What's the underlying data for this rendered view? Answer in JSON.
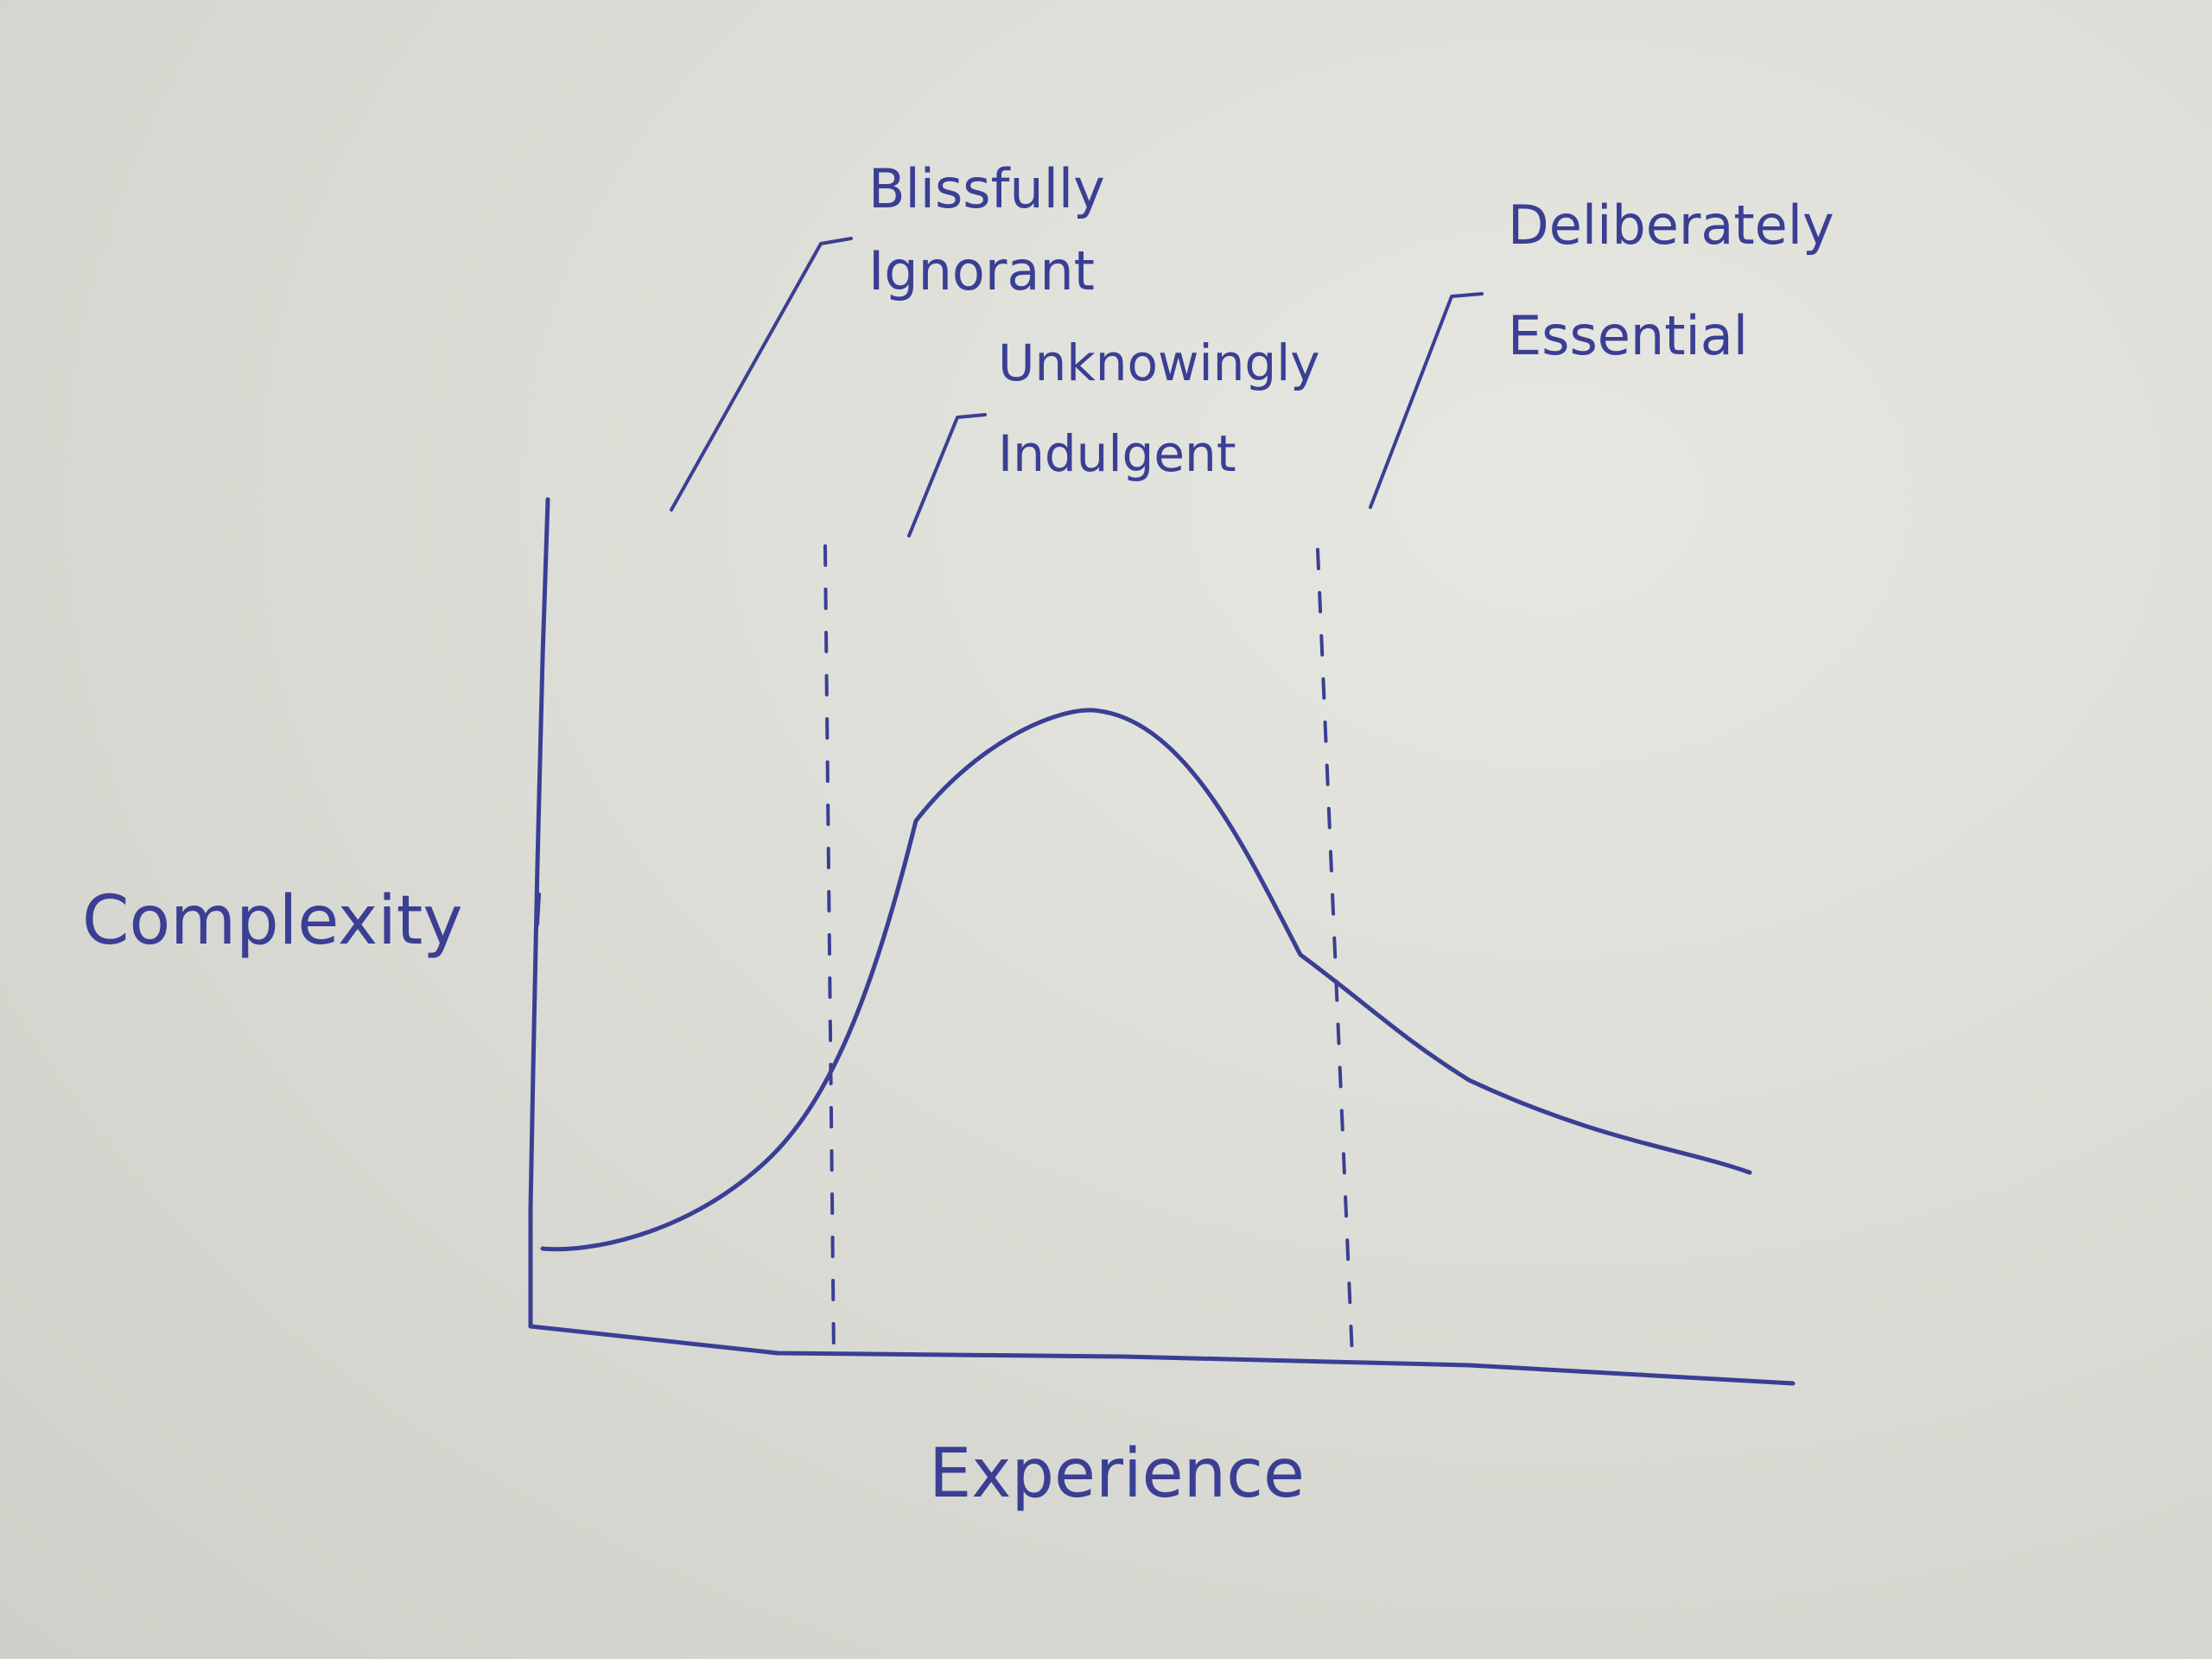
{
  "diagram": {
    "axes": {
      "x_label": "Experience",
      "y_label": "Complexity"
    },
    "zones": [
      {
        "id": "zone-1",
        "line1": "Blissfully",
        "line2": "Ignorant"
      },
      {
        "id": "zone-2",
        "line1": "Unknowingly",
        "line2": "Indulgent"
      },
      {
        "id": "zone-3",
        "line1": "Deliberately",
        "line2": "Essential"
      }
    ],
    "colors": {
      "ink": "#3a3f94",
      "paper": "#dcddd6"
    }
  }
}
